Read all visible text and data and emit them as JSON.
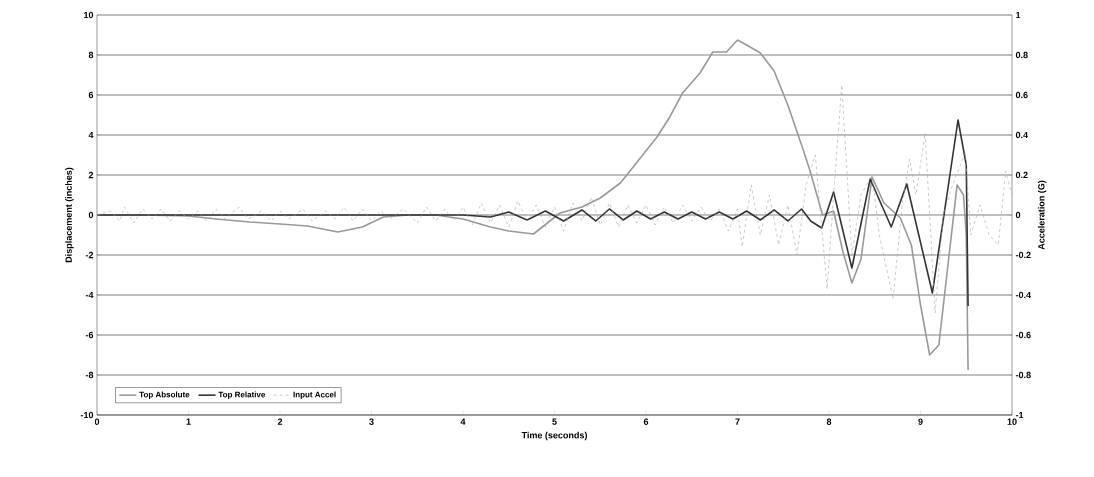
{
  "chart_data": {
    "type": "line",
    "xlabel": "Time (seconds)",
    "ylabel": "Displacement (inches)",
    "y2label": "Acceleration (G)",
    "xlim": [
      0,
      10
    ],
    "xticks": [
      0,
      1,
      2,
      3,
      4,
      5,
      6,
      7,
      8,
      9,
      10
    ],
    "ylim": [
      -10,
      10
    ],
    "yticks": [
      -10,
      -8,
      -6,
      -4,
      -2,
      0,
      2,
      4,
      6,
      8,
      10
    ],
    "y2lim": [
      -1,
      1
    ],
    "y2ticks": [
      -1,
      -0.8,
      -0.6,
      -0.4,
      -0.2,
      0,
      0.2,
      0.4,
      0.6,
      0.8,
      1
    ],
    "grid": "y",
    "legend": "bottom left",
    "marker": "none",
    "series": [
      {
        "name": "Top Absolute",
        "color": "#999999",
        "line_style": "solid",
        "x": [
          0,
          0.5,
          1,
          1.3,
          1.67,
          2,
          2.3,
          2.63,
          2.9,
          3.13,
          3.4,
          3.7,
          4,
          4.3,
          4.5,
          4.77,
          5.06,
          5.3,
          5.5,
          5.72,
          5.86,
          6.12,
          6.26,
          6.4,
          6.59,
          6.73,
          6.88,
          7.0,
          7.1,
          7.25,
          7.4,
          7.55,
          7.7,
          7.79,
          7.93,
          8.05,
          8.15,
          8.25,
          8.35,
          8.47,
          8.6,
          8.78,
          8.9,
          9.0,
          9.1,
          9.2,
          9.3,
          9.4,
          9.47,
          9.5,
          9.52
        ],
        "values": [
          0,
          0,
          -0.05,
          -0.2,
          -0.35,
          -0.45,
          -0.55,
          -0.85,
          -0.6,
          -0.1,
          0,
          0,
          -0.2,
          -0.6,
          -0.8,
          -0.95,
          0.1,
          0.4,
          0.85,
          1.6,
          2.4,
          3.9,
          4.9,
          6.1,
          7.1,
          8.15,
          8.15,
          8.75,
          8.5,
          8.1,
          7.2,
          5.5,
          3.5,
          2.25,
          0,
          0.2,
          -1.8,
          -3.4,
          -2.2,
          1.9,
          0.6,
          -0.15,
          -1.5,
          -4.5,
          -7.0,
          -6.5,
          -2.5,
          1.5,
          1.0,
          -1.0,
          -7.75
        ]
      },
      {
        "name": "Top Relative",
        "color": "#333333",
        "line_style": "solid",
        "x": [
          0,
          1,
          2,
          3,
          4,
          4.3,
          4.5,
          4.7,
          4.9,
          5.1,
          5.3,
          5.45,
          5.6,
          5.75,
          5.9,
          6.05,
          6.2,
          6.35,
          6.5,
          6.65,
          6.8,
          6.95,
          7.1,
          7.25,
          7.4,
          7.55,
          7.7,
          7.8,
          7.92,
          8.05,
          8.25,
          8.45,
          8.68,
          8.85,
          9.13,
          9.41,
          9.5,
          9.52
        ],
        "values": [
          0,
          0,
          0,
          0,
          0,
          -0.1,
          0.15,
          -0.25,
          0.2,
          -0.3,
          0.25,
          -0.3,
          0.3,
          -0.25,
          0.2,
          -0.2,
          0.15,
          -0.2,
          0.15,
          -0.2,
          0.15,
          -0.2,
          0.2,
          -0.25,
          0.25,
          -0.3,
          0.3,
          -0.3,
          -0.65,
          1.15,
          -2.65,
          1.8,
          -0.6,
          1.55,
          -3.9,
          4.75,
          2.5,
          -4.55
        ]
      },
      {
        "name": "Input Accel",
        "color": "#a6a6a6",
        "line_style": "dashed",
        "axis": "y2",
        "x": [
          0,
          0.15,
          0.25,
          0.3,
          0.4,
          0.5,
          0.6,
          0.7,
          0.8,
          0.9,
          1.0,
          1.1,
          1.2,
          1.3,
          1.4,
          1.55,
          1.65,
          1.8,
          1.9,
          2.0,
          2.1,
          2.25,
          2.35,
          2.5,
          2.6,
          2.7,
          2.8,
          2.9,
          3.0,
          3.1,
          3.2,
          3.35,
          3.5,
          3.6,
          3.7,
          3.8,
          3.9,
          4.0,
          4.1,
          4.2,
          4.3,
          4.4,
          4.5,
          4.6,
          4.7,
          4.8,
          4.9,
          5.0,
          5.1,
          5.2,
          5.3,
          5.4,
          5.5,
          5.6,
          5.7,
          5.8,
          5.9,
          6.0,
          6.1,
          6.2,
          6.3,
          6.4,
          6.5,
          6.6,
          6.7,
          6.8,
          6.9,
          7.0,
          7.05,
          7.15,
          7.25,
          7.35,
          7.45,
          7.55,
          7.65,
          7.75,
          7.85,
          7.98,
          8.05,
          8.14,
          8.25,
          8.35,
          8.47,
          8.55,
          8.7,
          8.8,
          8.88,
          8.95,
          9.05,
          9.16,
          9.25,
          9.35,
          9.49,
          9.55,
          9.65,
          9.75,
          9.85,
          9.93,
          10.0
        ],
        "values": [
          0,
          0.02,
          -0.03,
          0.04,
          -0.04,
          0.03,
          -0.02,
          0.03,
          -0.03,
          0.02,
          -0.02,
          0.02,
          -0.03,
          0.03,
          -0.02,
          0.04,
          -0.02,
          0.02,
          -0.03,
          0.02,
          -0.02,
          0.03,
          -0.03,
          0.02,
          -0.02,
          0.04,
          -0.03,
          0.03,
          -0.03,
          0.02,
          -0.02,
          0.03,
          -0.04,
          0.04,
          -0.03,
          0.03,
          -0.03,
          0.04,
          -0.05,
          0.06,
          -0.04,
          0.05,
          -0.06,
          0.07,
          -0.03,
          0.05,
          -0.06,
          0.04,
          -0.08,
          0.06,
          -0.03,
          0.09,
          -0.05,
          0.06,
          -0.06,
          0.05,
          -0.04,
          0.05,
          -0.05,
          0.04,
          -0.04,
          0.05,
          -0.03,
          0.04,
          -0.03,
          0.03,
          -0.08,
          0.03,
          -0.16,
          0.15,
          -0.1,
          0.1,
          -0.15,
          0.05,
          -0.2,
          0.15,
          0.3,
          -0.37,
          0.1,
          0.65,
          -0.2,
          0.1,
          0.2,
          -0.1,
          -0.42,
          0.05,
          0.28,
          0.1,
          0.41,
          -0.49,
          0.0,
          0.15,
          0.31,
          -0.1,
          0.05,
          -0.1,
          -0.15,
          0.22,
          0.1
        ]
      }
    ]
  }
}
